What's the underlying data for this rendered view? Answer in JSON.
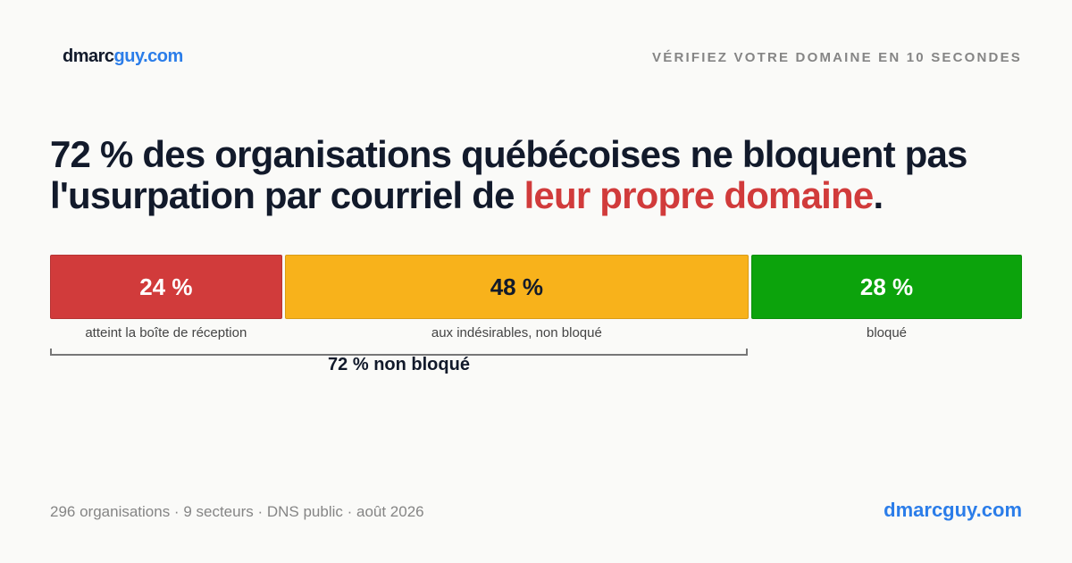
{
  "header": {
    "logo_part1": "dmarc",
    "logo_part2": "guy.com",
    "tagline": "VÉRIFIEZ VOTRE DOMAINE EN 10 SECONDES"
  },
  "headline": {
    "text_before": "72 % des organisations québécoises ne bloquent pas l'usurpation par courriel de ",
    "highlight": "leur propre domaine",
    "text_after": "."
  },
  "colors": {
    "brand": "#2b7de9",
    "highlight": "#d13b3b"
  },
  "chart_data": {
    "type": "bar",
    "orientation": "stacked-horizontal",
    "unit": "%",
    "segments": [
      {
        "value": 24,
        "display": "24 %",
        "label": "atteint la boîte de réception",
        "color": "#d13b3b",
        "text_color": "#ffffff"
      },
      {
        "value": 48,
        "display": "48 %",
        "label": "aux indésirables, non bloqué",
        "color": "#f8b21b",
        "text_color": "#121a2b"
      },
      {
        "value": 28,
        "display": "28 %",
        "label": "bloqué",
        "color": "#0ca30c",
        "text_color": "#ffffff"
      }
    ],
    "annotation": {
      "text": "72 % non bloqué",
      "spans": [
        0,
        1
      ]
    }
  },
  "footer": {
    "meta": "296 organisations · 9 secteurs · DNS public · août 2026",
    "brand": "dmarcguy.com"
  }
}
